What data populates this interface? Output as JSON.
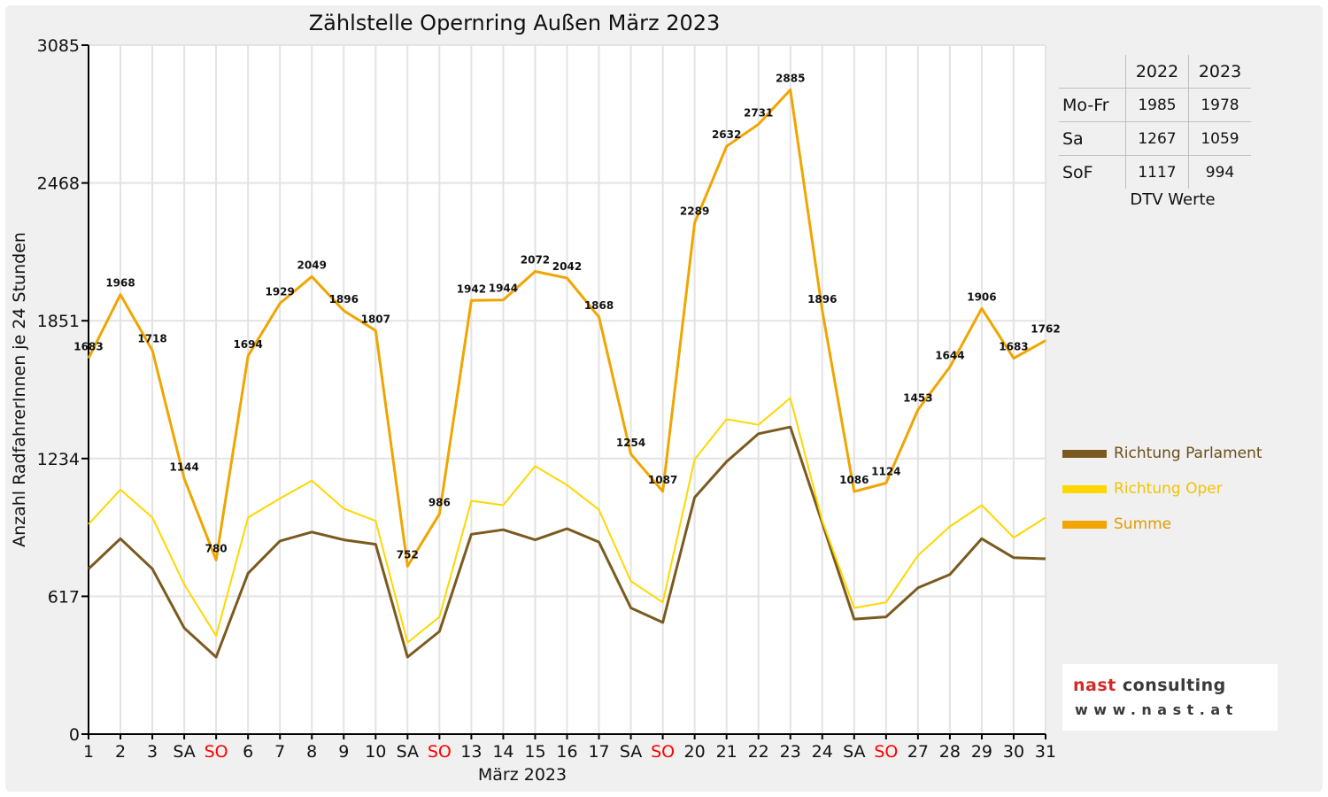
{
  "chart_data": {
    "type": "line",
    "title": "Zählstelle Opernring Außen März 2023",
    "xlabel": "März 2023",
    "ylabel": "Anzahl RadfahrerInnen je 24 Stunden",
    "ylim": [
      0,
      3085
    ],
    "yticks": [
      0,
      617,
      1234,
      1851,
      2468,
      3085
    ],
    "grid": true,
    "legend_position": "right",
    "x_tick_labels": [
      "1",
      "2",
      "3",
      "SA",
      "SO",
      "6",
      "7",
      "8",
      "9",
      "10",
      "SA",
      "SO",
      "13",
      "14",
      "15",
      "16",
      "17",
      "SA",
      "SO",
      "20",
      "21",
      "22",
      "23",
      "24",
      "SA",
      "SO",
      "27",
      "28",
      "29",
      "30",
      "31"
    ],
    "sunday_label": "SO",
    "sunday_color": "#ff0000",
    "series": [
      {
        "name": "Richtung Parlament",
        "color": "#7a5a1e",
        "values": [
          740,
          875,
          740,
          475,
          345,
          720,
          865,
          905,
          870,
          850,
          345,
          460,
          895,
          915,
          870,
          920,
          860,
          565,
          500,
          1060,
          1220,
          1345,
          1375,
          945,
          515,
          525,
          655,
          715,
          875,
          790,
          785
        ]
      },
      {
        "name": "Richtung Oper",
        "color": "#ffd700",
        "values": [
          940,
          1095,
          970,
          670,
          440,
          970,
          1055,
          1135,
          1010,
          955,
          410,
          525,
          1045,
          1025,
          1200,
          1115,
          1005,
          685,
          590,
          1230,
          1410,
          1385,
          1505,
          955,
          565,
          590,
          800,
          930,
          1025,
          880,
          970
        ]
      },
      {
        "name": "Summe",
        "color": "#f0a500",
        "values": [
          1683,
          1968,
          1718,
          1144,
          780,
          1694,
          1929,
          2049,
          1896,
          1807,
          752,
          986,
          1942,
          1944,
          2072,
          2042,
          1868,
          1254,
          1087,
          2289,
          2632,
          2731,
          2885,
          1896,
          1086,
          1124,
          1453,
          1644,
          1906,
          1683,
          1762
        ],
        "labels": [
          "1683",
          "1968",
          "1718",
          "1144",
          "780",
          "1694",
          "1929",
          "2049",
          "1896",
          "1807",
          "752",
          "986",
          "1942",
          "1944",
          "2072",
          "2042",
          "1868",
          "1254",
          "1087",
          "2289",
          "2632",
          "2731",
          "2885",
          "1896",
          "1086",
          "1124",
          "1453",
          "1644",
          "1906",
          "1683",
          "1762"
        ]
      }
    ]
  },
  "dtv_table": {
    "columns": [
      "2022",
      "2023"
    ],
    "rows": [
      {
        "label": "Mo-Fr",
        "v2022": "1985",
        "v2023": "1978"
      },
      {
        "label": "Sa",
        "v2022": "1267",
        "v2023": "1059"
      },
      {
        "label": "SoF",
        "v2022": "1117",
        "v2023": "994"
      }
    ],
    "caption": "DTV Werte"
  },
  "logo": {
    "name_part1": "nast",
    "name_part2": "consulting",
    "url": "www.nast.at"
  }
}
